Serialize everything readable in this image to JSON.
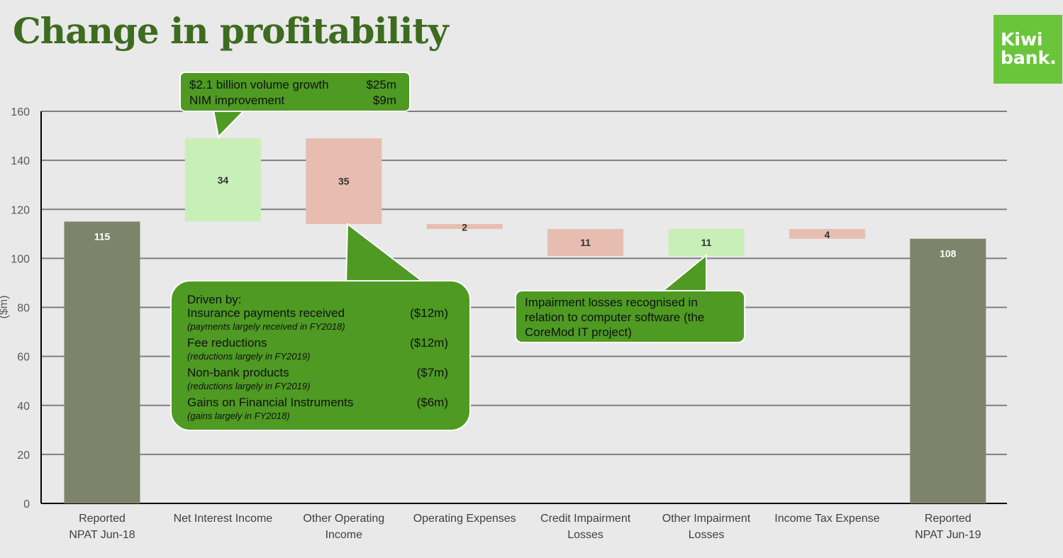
{
  "title": "Change in profitability",
  "logo": {
    "line1": "Kiwi",
    "line2": "bank."
  },
  "colors": {
    "total": "#7d8469",
    "increase": "#c9efb8",
    "decrease": "#e8bdb1",
    "callout": "#4e9a22"
  },
  "chart_data": {
    "type": "waterfall",
    "title": "Change in profitability",
    "ylabel": "($m)",
    "ylim": [
      0,
      160
    ],
    "yticks": [
      0,
      20,
      40,
      60,
      80,
      100,
      120,
      140,
      160
    ],
    "grid": true,
    "categories": [
      "Reported NPAT Jun-18",
      "Net Interest Income",
      "Other Operating Income",
      "Operating Expenses",
      "Credit Impairment Losses",
      "Other Impairment Losses",
      "Income Tax Expense",
      "Reported NPAT Jun-19"
    ],
    "category_lines": [
      [
        "Reported",
        "NPAT Jun-18"
      ],
      [
        "Net Interest Income"
      ],
      [
        "Other Operating",
        "Income"
      ],
      [
        "Operating Expenses"
      ],
      [
        "Credit Impairment",
        "Losses"
      ],
      [
        "Other Impairment",
        "Losses"
      ],
      [
        "Income Tax Expense"
      ],
      [
        "Reported",
        "NPAT Jun-19"
      ]
    ],
    "bars": [
      {
        "start": 0,
        "end": 115,
        "label": "115",
        "kind": "total"
      },
      {
        "start": 115,
        "end": 149,
        "label": "34",
        "kind": "increase"
      },
      {
        "start": 149,
        "end": 114,
        "label": "35",
        "kind": "decrease"
      },
      {
        "start": 114,
        "end": 112,
        "label": "2",
        "kind": "decrease"
      },
      {
        "start": 112,
        "end": 101,
        "label": "11",
        "kind": "decrease"
      },
      {
        "start": 101,
        "end": 112,
        "label": "11",
        "kind": "increase"
      },
      {
        "start": 112,
        "end": 108,
        "label": "4",
        "kind": "decrease"
      },
      {
        "start": 0,
        "end": 108,
        "label": "108",
        "kind": "total"
      }
    ]
  },
  "callouts": {
    "nii": {
      "rows": [
        [
          "$2.1 billion volume growth",
          "$25m"
        ],
        [
          "NIM improvement",
          "$9m"
        ]
      ]
    },
    "ooi": {
      "heading": "Driven by:",
      "rows": [
        {
          "label": "Insurance payments received",
          "value": "($12m)",
          "note": "(payments largely received in FY2018)"
        },
        {
          "label": "Fee reductions",
          "value": "($12m)",
          "note": "(reductions largely in FY2019)"
        },
        {
          "label": "Non-bank products",
          "value": "($7m)",
          "note": "(reductions largely in FY2019)"
        },
        {
          "label": "Gains on Financial Instruments",
          "value": "($6m)",
          "note": "(gains largely in FY2018)"
        }
      ]
    },
    "impairment": {
      "text": "Impairment losses recognised in relation to computer software (the CoreMod IT project)"
    }
  }
}
